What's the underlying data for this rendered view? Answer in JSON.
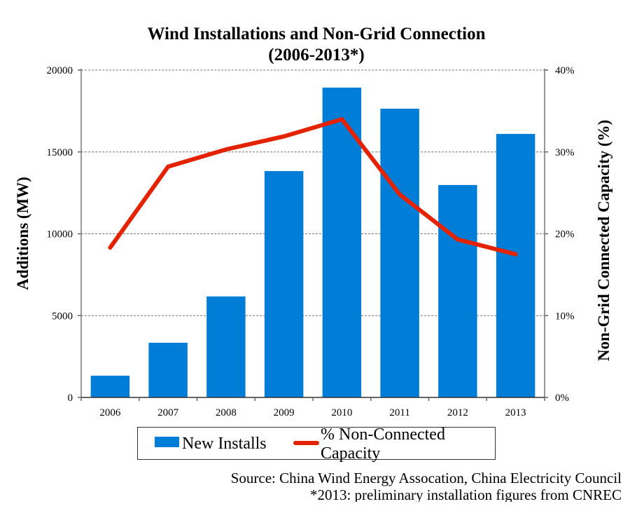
{
  "chart_data": {
    "type": "bar",
    "title": "Wind Installations and Non-Grid Connection",
    "subtitle": "(2006-2013*)",
    "categories": [
      "2006",
      "2007",
      "2008",
      "2009",
      "2010",
      "2011",
      "2012",
      "2013"
    ],
    "series": [
      {
        "name": "New Installs",
        "type": "bar",
        "axis": "left",
        "color": "#007dd6",
        "values": [
          1330,
          3340,
          6170,
          13830,
          18930,
          17640,
          12980,
          16100
        ]
      },
      {
        "name": "% Non-Connected Capacity",
        "type": "line",
        "axis": "right",
        "color": "#e32200",
        "values": [
          18.3,
          28.2,
          30.3,
          31.9,
          34.0,
          24.8,
          19.3,
          17.5
        ]
      }
    ],
    "ylabel": "Additions (MW)",
    "ylabel_right": "Non-Grid Connected Capacity (%)",
    "ylim": [
      0,
      20000
    ],
    "ylim_right": [
      0,
      40
    ],
    "yticks": [
      "0",
      "5000",
      "10000",
      "15000",
      "20000"
    ],
    "yticks_right": [
      "0%",
      "10%",
      "20%",
      "30%",
      "40%"
    ],
    "grid": true,
    "legend_position": "bottom"
  },
  "legend": {
    "bar_label": "New Installs",
    "line_label": "% Non-Connected Capacity"
  },
  "footer": {
    "source": "Source: China Wind Energy Assocation, China Electricity Council",
    "note": "*2013: preliminary installation figures from CNREC"
  }
}
